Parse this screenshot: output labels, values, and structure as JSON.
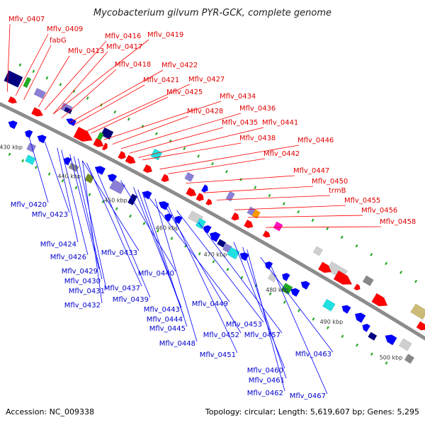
{
  "title": "Mycobacterium gilvum PYR-GCK, complete genome",
  "footer": {
    "accession": "Accession: NC_009338",
    "summary": "Topology: circular; Length: 5,619,607 bp; Genes: 5,295"
  },
  "colors": {
    "red": "#ff0000",
    "blue": "#0000ff",
    "navy": "#000080",
    "purple": "#8a7fd6",
    "cyan": "#20e0e0",
    "gray": "#888888",
    "lightgray": "#cfcfcf",
    "green": "#22aa22",
    "olive": "#708a20",
    "orange": "#ff9900",
    "magenta": "#ff10c0",
    "tan": "#ccbb77",
    "backbone": "#8c8c8c",
    "top_label": "#e00000",
    "bottom_label": "#0000cc"
  },
  "kbp_labels": [
    "430 kbp",
    "440 kbp",
    "450 kbp",
    "460 kbp",
    "470 kbp",
    "480 kbp",
    "490 kbp",
    "500 kbp"
  ],
  "top_labels": [
    "Mflv_0407",
    "Mflv_0409",
    "fabG",
    "Mflv_0413",
    "Mflv_0416",
    "Mflv_0419",
    "Mflv_0417",
    "Mflv_0418",
    "Mflv_0422",
    "Mflv_0421",
    "Mflv_0427",
    "Mflv_0425",
    "Mflv_0434",
    "Mflv_0428",
    "Mflv_0436",
    "Mflv_0435",
    "Mflv_0441",
    "Mflv_0438",
    "Mflv_0446",
    "Mflv_0442",
    "Mflv_0447",
    "Mflv_0450",
    "trmB",
    "Mflv_0455",
    "Mflv_0456",
    "Mflv_0458"
  ],
  "bottom_labels": [
    "Mflv_0420",
    "Mflv_0423",
    "Mflv_0424",
    "Mflv_0426",
    "Mflv_0433",
    "Mflv_0429",
    "Mflv_0430",
    "Mflv_0437",
    "Mflv_0431",
    "Mflv_0439",
    "Mflv_0432",
    "Mflv_0440",
    "Mflv_0443",
    "Mflv_0449",
    "Mflv_0444",
    "Mflv_0445",
    "Mflv_0453",
    "Mflv_0457",
    "Mflv_0452",
    "Mflv_0448",
    "Mflv_0451",
    "Mflv_0463",
    "Mflv_0460",
    "Mflv_0461",
    "Mflv_0462",
    "Mflv_0467"
  ]
}
